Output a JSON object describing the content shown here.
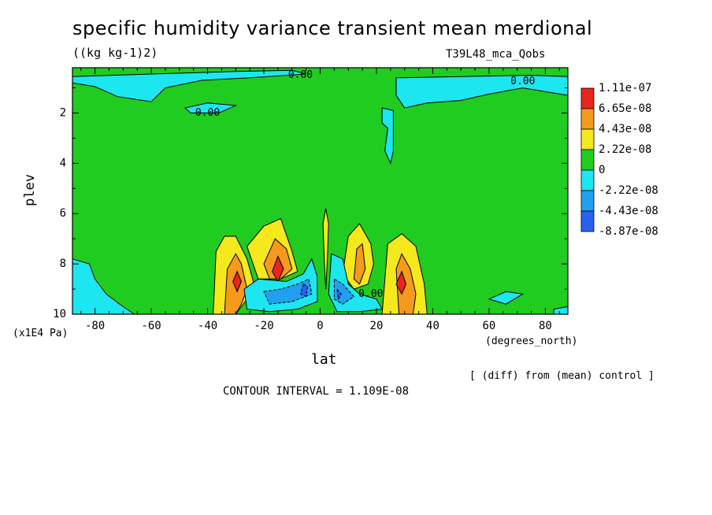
{
  "chart_data": {
    "type": "heatmap",
    "title": "specific humidity variance transient mean merdional",
    "units": "((kg kg-1)2)",
    "run_id": "T39L48_mca_Qobs",
    "xlabel": "lat",
    "x_units": "(degrees_north)",
    "ylabel": "plev",
    "y_units": "(x1E4 Pa)",
    "xlim": [
      -88,
      88
    ],
    "ylim": [
      10,
      0.2
    ],
    "x_ticks": [
      "-80",
      "-60",
      "-40",
      "-20",
      "0",
      "20",
      "40",
      "60",
      "80"
    ],
    "x_tick_values": [
      -80,
      -60,
      -40,
      -20,
      0,
      20,
      40,
      60,
      80
    ],
    "y_ticks": [
      "2",
      "4",
      "6",
      "8",
      "10"
    ],
    "y_tick_values": [
      2,
      4,
      6,
      8,
      10
    ],
    "legend": {
      "labels": [
        "1.11e-07",
        "6.65e-08",
        "4.43e-08",
        "2.22e-08",
        "0",
        "-2.22e-08",
        "-4.43e-08",
        "-8.87e-08"
      ],
      "colors": [
        "#e8261c",
        "#f59a1c",
        "#f5e81c",
        "#21cc21",
        "#1ce6f0",
        "#21a0f0",
        "#2c60f0"
      ]
    },
    "contour_labels": [
      {
        "text": "0.00",
        "x": -7,
        "y": 0.5
      },
      {
        "text": "0.00",
        "x": -40,
        "y": 2.0
      },
      {
        "text": "0.00",
        "x": 72,
        "y": 0.75
      },
      {
        "text": "0.00",
        "x": 18,
        "y": 9.2
      }
    ],
    "footer_note": "[ (diff) from (mean) control ]",
    "contour_interval_text": "CONTOUR INTERVAL = 1.109E-08",
    "regions": [
      {
        "level": "neg1",
        "points": [
          [
            -88,
            0.55
          ],
          [
            -60,
            0.45
          ],
          [
            -30,
            0.35
          ],
          [
            -10,
            0.3
          ],
          [
            -5,
            0.45
          ],
          [
            -25,
            0.6
          ],
          [
            -42,
            0.7
          ],
          [
            -55,
            1.0
          ],
          [
            -60,
            1.55
          ],
          [
            -72,
            1.35
          ],
          [
            -80,
            0.95
          ],
          [
            -88,
            0.8
          ]
        ]
      },
      {
        "level": "neg1",
        "points": [
          [
            -48,
            1.8
          ],
          [
            -40,
            1.6
          ],
          [
            -30,
            1.7
          ],
          [
            -36,
            2.0
          ],
          [
            -46,
            2.0
          ]
        ]
      },
      {
        "level": "neg1",
        "points": [
          [
            27,
            0.6
          ],
          [
            50,
            0.55
          ],
          [
            75,
            0.5
          ],
          [
            88,
            0.55
          ],
          [
            88,
            1.3
          ],
          [
            72,
            1.0
          ],
          [
            60,
            1.25
          ],
          [
            50,
            1.5
          ],
          [
            38,
            1.6
          ],
          [
            30,
            1.8
          ],
          [
            27,
            1.3
          ]
        ]
      },
      {
        "level": "neg1",
        "points": [
          [
            22,
            1.8
          ],
          [
            26,
            1.9
          ],
          [
            26,
            3.5
          ],
          [
            25,
            4.0
          ],
          [
            23,
            3.5
          ],
          [
            24,
            2.6
          ],
          [
            22,
            2.4
          ]
        ]
      },
      {
        "level": "neg1",
        "points": [
          [
            -88,
            7.8
          ],
          [
            -82,
            8.0
          ],
          [
            -80,
            8.6
          ],
          [
            -76,
            9.2
          ],
          [
            -70,
            9.7
          ],
          [
            -66,
            10
          ],
          [
            -88,
            10
          ]
        ]
      },
      {
        "level": "neg1",
        "points": [
          [
            60,
            9.4
          ],
          [
            66,
            9.1
          ],
          [
            72,
            9.2
          ],
          [
            66,
            9.6
          ]
        ]
      },
      {
        "level": "neg1",
        "points": [
          [
            83,
            9.8
          ],
          [
            88,
            9.7
          ],
          [
            88,
            10
          ],
          [
            83,
            10
          ]
        ]
      },
      {
        "level": "pos1",
        "points": [
          [
            -38,
            10
          ],
          [
            -37,
            7.5
          ],
          [
            -34,
            6.9
          ],
          [
            -30,
            6.9
          ],
          [
            -26,
            7.8
          ],
          [
            -23,
            9.0
          ],
          [
            -26,
            9.4
          ],
          [
            -30,
            10
          ]
        ]
      },
      {
        "level": "pos1",
        "points": [
          [
            -26,
            7.3
          ],
          [
            -20,
            6.5
          ],
          [
            -14,
            6.2
          ],
          [
            -10,
            7.5
          ],
          [
            -8,
            8.3
          ],
          [
            -14,
            8.6
          ],
          [
            -22,
            8.6
          ]
        ]
      },
      {
        "level": "pos1",
        "points": [
          [
            8,
            8.4
          ],
          [
            10,
            6.9
          ],
          [
            14,
            6.4
          ],
          [
            18,
            7.2
          ],
          [
            19,
            8.0
          ],
          [
            17,
            8.8
          ],
          [
            12,
            9.0
          ]
        ]
      },
      {
        "level": "pos1",
        "points": [
          [
            22,
            10
          ],
          [
            24,
            7.2
          ],
          [
            29,
            6.8
          ],
          [
            34,
            7.3
          ],
          [
            37,
            8.8
          ],
          [
            38,
            10
          ]
        ]
      },
      {
        "level": "pos1",
        "points": [
          [
            1,
            6.4
          ],
          [
            2,
            5.8
          ],
          [
            3,
            6.4
          ],
          [
            2.5,
            8.0
          ],
          [
            2,
            9.0
          ],
          [
            1.5,
            8.0
          ]
        ]
      },
      {
        "level": "pos2",
        "points": [
          [
            -34,
            10
          ],
          [
            -33,
            8.2
          ],
          [
            -30,
            7.6
          ],
          [
            -28,
            8.0
          ],
          [
            -26,
            9.0
          ],
          [
            -28,
            9.6
          ],
          [
            -30,
            10
          ]
        ]
      },
      {
        "level": "pos2",
        "points": [
          [
            28,
            10
          ],
          [
            27,
            8.2
          ],
          [
            29,
            7.6
          ],
          [
            32,
            8.2
          ],
          [
            34,
            9.2
          ],
          [
            33,
            10
          ]
        ]
      },
      {
        "level": "pos2",
        "points": [
          [
            -20,
            8.0
          ],
          [
            -16,
            7.0
          ],
          [
            -12,
            7.4
          ],
          [
            -10,
            8.2
          ],
          [
            -14,
            8.6
          ],
          [
            -18,
            8.6
          ]
        ]
      },
      {
        "level": "pos2",
        "points": [
          [
            12,
            8.6
          ],
          [
            13,
            7.4
          ],
          [
            15,
            7.2
          ],
          [
            16,
            8.2
          ],
          [
            14,
            8.8
          ]
        ]
      },
      {
        "level": "pos3",
        "points": [
          [
            -31,
            8.7
          ],
          [
            -29.5,
            8.3
          ],
          [
            -28,
            8.7
          ],
          [
            -29.5,
            9.1
          ]
        ]
      },
      {
        "level": "pos3",
        "points": [
          [
            27,
            8.8
          ],
          [
            29,
            8.3
          ],
          [
            30.5,
            8.8
          ],
          [
            29,
            9.2
          ]
        ]
      },
      {
        "level": "pos3",
        "points": [
          [
            -17,
            8.3
          ],
          [
            -15,
            7.7
          ],
          [
            -13,
            8.2
          ],
          [
            -15,
            8.7
          ]
        ]
      },
      {
        "level": "neg1",
        "points": [
          [
            -27,
            9.0
          ],
          [
            -22,
            8.6
          ],
          [
            -12,
            8.7
          ],
          [
            -6,
            8.4
          ],
          [
            -3,
            7.8
          ],
          [
            -1,
            8.5
          ],
          [
            -1,
            9.5
          ],
          [
            -8,
            9.8
          ],
          [
            -18,
            9.9
          ],
          [
            -26,
            9.8
          ]
        ]
      },
      {
        "level": "neg1",
        "points": [
          [
            4,
            7.6
          ],
          [
            8,
            7.8
          ],
          [
            10,
            8.8
          ],
          [
            14,
            9.2
          ],
          [
            20,
            9.4
          ],
          [
            22,
            9.8
          ],
          [
            14,
            9.9
          ],
          [
            6,
            9.9
          ],
          [
            3,
            9.2
          ]
        ]
      },
      {
        "level": "neg2",
        "points": [
          [
            -20,
            9.1
          ],
          [
            -14,
            9.0
          ],
          [
            -8,
            8.8
          ],
          [
            -4,
            8.6
          ],
          [
            -3,
            9.2
          ],
          [
            -10,
            9.5
          ],
          [
            -18,
            9.6
          ]
        ]
      },
      {
        "level": "neg2",
        "points": [
          [
            5,
            8.6
          ],
          [
            8,
            8.8
          ],
          [
            12,
            9.3
          ],
          [
            8,
            9.6
          ],
          [
            5,
            9.4
          ]
        ]
      },
      {
        "level": "neg3",
        "points": [
          [
            -6,
            8.8
          ],
          [
            -4.5,
            8.9
          ],
          [
            -5,
            9.3
          ],
          [
            -7,
            9.2
          ]
        ]
      },
      {
        "level": "neg3",
        "points": [
          [
            6,
            9.0
          ],
          [
            7.5,
            9.2
          ],
          [
            6.5,
            9.4
          ]
        ]
      }
    ]
  }
}
